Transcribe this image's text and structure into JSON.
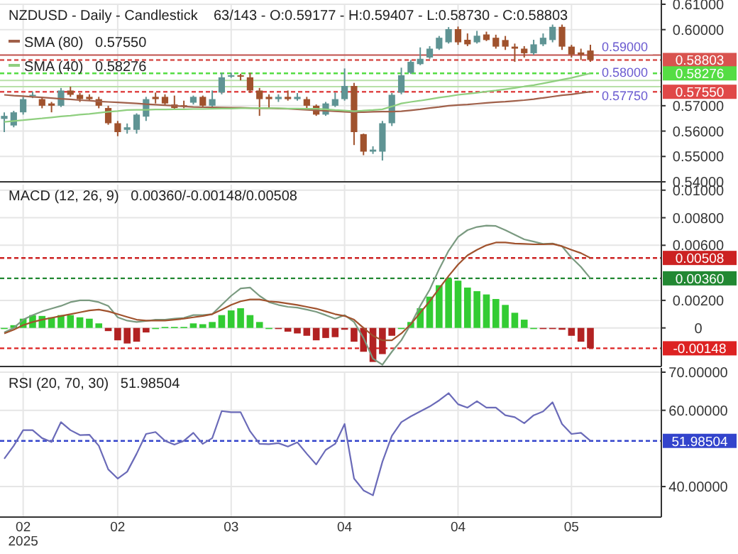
{
  "chart_data": [
    {
      "type": "candlestick",
      "title": "NZDUSD - Daily - Candlestick    63/143 - O:0.59177 - H:0.59407 - L:0.58730 - C:0.58803",
      "categories": [
        null,
        null,
        null,
        null,
        null,
        null,
        null,
        null,
        null,
        null,
        null,
        null,
        null,
        null,
        null,
        null,
        null,
        null,
        null,
        null,
        null,
        null,
        null,
        null,
        null,
        null,
        null,
        null,
        null,
        null,
        null,
        null,
        null,
        null,
        null,
        null,
        null,
        null,
        null,
        null,
        null,
        null,
        null,
        null,
        null,
        null,
        null,
        null,
        null,
        null,
        null,
        null,
        null,
        null,
        null,
        null,
        null,
        null,
        null,
        null,
        null,
        null,
        null
      ],
      "ohlc": [
        [
          0.5648,
          0.5674,
          0.5596,
          0.566
        ],
        [
          0.5622,
          0.568,
          0.5615,
          0.5674
        ],
        [
          0.5674,
          0.5735,
          0.5665,
          0.5726
        ],
        [
          0.574,
          0.5755,
          0.573,
          0.5743
        ],
        [
          0.5726,
          0.5735,
          0.569,
          0.57
        ],
        [
          0.5709,
          0.5715,
          0.5674,
          0.57
        ],
        [
          0.57,
          0.577,
          0.5695,
          0.576
        ],
        [
          0.576,
          0.5775,
          0.5735,
          0.5743
        ],
        [
          0.5743,
          0.575,
          0.5715,
          0.5726
        ],
        [
          0.5735,
          0.5745,
          0.572,
          0.5726
        ],
        [
          0.5726,
          0.5735,
          0.569,
          0.57
        ],
        [
          0.5691,
          0.57,
          0.5625,
          0.5631
        ],
        [
          0.5631,
          0.564,
          0.558,
          0.5596
        ],
        [
          0.5605,
          0.563,
          0.559,
          0.5615
        ],
        [
          0.5605,
          0.567,
          0.559,
          0.5665
        ],
        [
          0.5657,
          0.5735,
          0.564,
          0.5726
        ],
        [
          0.5735,
          0.5752,
          0.5709,
          0.5726
        ],
        [
          0.5735,
          0.5745,
          0.57,
          0.5709
        ],
        [
          0.5705,
          0.574,
          0.5688,
          0.5691
        ],
        [
          0.5702,
          0.572,
          0.569,
          0.5697
        ],
        [
          0.5712,
          0.574,
          0.5705,
          0.5735
        ],
        [
          0.5735,
          0.574,
          0.5695,
          0.57
        ],
        [
          0.57,
          0.576,
          0.5695,
          0.5726
        ],
        [
          0.5752,
          0.583,
          0.5745,
          0.5812
        ],
        [
          0.5815,
          0.583,
          0.581,
          0.582
        ],
        [
          0.582,
          0.5826,
          0.58,
          0.5818
        ],
        [
          0.5812,
          0.583,
          0.575,
          0.576
        ],
        [
          0.576,
          0.577,
          0.566,
          0.5726
        ],
        [
          0.5735,
          0.5745,
          0.569,
          0.5726
        ],
        [
          0.5726,
          0.5745,
          0.5715,
          0.5735
        ],
        [
          0.5735,
          0.576,
          0.572,
          0.5726
        ],
        [
          0.5726,
          0.575,
          0.572,
          0.5735
        ],
        [
          0.5726,
          0.5735,
          0.569,
          0.57
        ],
        [
          0.57,
          0.5705,
          0.566,
          0.5665
        ],
        [
          0.5665,
          0.5715,
          0.566,
          0.5709
        ],
        [
          0.57,
          0.5752,
          0.5695,
          0.5726
        ],
        [
          0.5726,
          0.5847,
          0.572,
          0.5778
        ],
        [
          0.5778,
          0.579,
          0.5545,
          0.5596
        ],
        [
          0.5588,
          0.559,
          0.5505,
          0.5519
        ],
        [
          0.5519,
          0.554,
          0.551,
          0.5527
        ],
        [
          0.5519,
          0.564,
          0.5484,
          0.5631
        ],
        [
          0.5631,
          0.575,
          0.562,
          0.5743
        ],
        [
          0.5752,
          0.585,
          0.5745,
          0.582
        ],
        [
          0.583,
          0.588,
          0.5825,
          0.5873
        ],
        [
          0.5864,
          0.593,
          0.586,
          0.5885
        ],
        [
          0.589,
          0.5935,
          0.5885,
          0.5925
        ],
        [
          0.5925,
          0.5975,
          0.592,
          0.5968
        ],
        [
          0.595,
          0.601,
          0.5945,
          0.6002
        ],
        [
          0.6002,
          0.6012,
          0.594,
          0.595
        ],
        [
          0.596,
          0.5985,
          0.5935,
          0.5942
        ],
        [
          0.595,
          0.5995,
          0.5945,
          0.5976
        ],
        [
          0.5981,
          0.5992,
          0.5955,
          0.5959
        ],
        [
          0.5968,
          0.598,
          0.5925,
          0.5933
        ],
        [
          0.5959,
          0.5975,
          0.592,
          0.5933
        ],
        [
          0.5933,
          0.5945,
          0.5873,
          0.5925
        ],
        [
          0.5925,
          0.5935,
          0.589,
          0.5907
        ],
        [
          0.5907,
          0.596,
          0.59,
          0.5942
        ],
        [
          0.5942,
          0.5985,
          0.5935,
          0.5968
        ],
        [
          0.5959,
          0.602,
          0.595,
          0.6011
        ],
        [
          0.6011,
          0.602,
          0.592,
          0.5933
        ],
        [
          0.5933,
          0.594,
          0.589,
          0.5902
        ],
        [
          0.591,
          0.5925,
          0.588,
          0.59
        ],
        [
          0.59177,
          0.59407,
          0.5873,
          0.58803
        ]
      ],
      "series": [
        {
          "type": "line",
          "name": "SMA (80)   0.57550",
          "color": "#a0604a",
          "values": [
            0.5743,
            0.574,
            0.5738,
            0.5735,
            0.5733,
            0.573,
            0.5727,
            0.5725,
            0.5722,
            0.572,
            0.5717,
            0.5715,
            0.5713,
            0.5711,
            0.5709,
            0.5706,
            0.5704,
            0.5702,
            0.57,
            0.5697,
            0.5695,
            0.5694,
            0.5694,
            0.5693,
            0.5692,
            0.5692,
            0.5691,
            0.569,
            0.569,
            0.5689,
            0.5688,
            0.5686,
            0.5684,
            0.5682,
            0.568,
            0.5678,
            0.5676,
            0.5674,
            0.5675,
            0.5676,
            0.5677,
            0.5677,
            0.5678,
            0.5682,
            0.5686,
            0.5691,
            0.5695,
            0.57,
            0.5703,
            0.5705,
            0.5708,
            0.5711,
            0.5714,
            0.5716,
            0.5719,
            0.5722,
            0.5726,
            0.5731,
            0.5736,
            0.5741,
            0.5745,
            0.575,
            0.5755
          ]
        },
        {
          "type": "line",
          "name": "SMA (40)   0.58276",
          "color": "#8fcf7f",
          "values": [
            0.5636,
            0.564,
            0.5643,
            0.5647,
            0.565,
            0.5654,
            0.5658,
            0.5661,
            0.5665,
            0.5668,
            0.5672,
            0.5676,
            0.5679,
            0.5683,
            0.5684,
            0.5684,
            0.5685,
            0.5685,
            0.5686,
            0.5686,
            0.5687,
            0.5687,
            0.5688,
            0.5689,
            0.5689,
            0.569,
            0.569,
            0.5691,
            0.569,
            0.569,
            0.5689,
            0.5689,
            0.5688,
            0.5688,
            0.5686,
            0.5683,
            0.5681,
            0.5678,
            0.5681,
            0.5683,
            0.5686,
            0.5697,
            0.5709,
            0.5715,
            0.572,
            0.5726,
            0.5732,
            0.5737,
            0.5743,
            0.5747,
            0.5751,
            0.5756,
            0.576,
            0.5765,
            0.577,
            0.5776,
            0.5781,
            0.5788,
            0.5795,
            0.5803,
            0.581,
            0.5819,
            0.58276
          ]
        }
      ],
      "ylim": [
        0.54,
        0.61
      ],
      "yticks": [
        {
          "value": 0.54,
          "label": "0.54000"
        },
        {
          "value": 0.55,
          "label": "0.55000"
        },
        {
          "value": 0.56,
          "label": "0.56000"
        },
        {
          "value": 0.57,
          "label": "0.57000"
        },
        {
          "value": 0.6,
          "label": "0.60000"
        },
        {
          "value": 0.61,
          "label": "0.61000"
        }
      ],
      "ref_lines": [
        {
          "axis": "y",
          "value": 0.59,
          "label": "0.59000",
          "color": "#c0504d",
          "line_style": "solid"
        },
        {
          "axis": "y",
          "value": 0.58,
          "label": "0.58000",
          "color": "#b8e0a8",
          "line_style": "solid"
        },
        {
          "axis": "y",
          "value": 0.5775,
          "label": "0.57750",
          "color": "#b8e0a8",
          "line_style": "solid"
        },
        {
          "axis": "y",
          "value": 0.58803,
          "label": "0.58803",
          "color": "#d9534f",
          "line_style": "dashed"
        },
        {
          "axis": "y",
          "value": 0.58276,
          "label": "0.58276",
          "color": "#55dd44",
          "line_style": "dashed"
        },
        {
          "axis": "y",
          "value": 0.5755,
          "label": "0.57550",
          "color": "#e04848",
          "line_style": "dashed"
        }
      ],
      "grid": true,
      "legend": "top left",
      "tick_labels": "y"
    },
    {
      "type": "bar",
      "title": "MACD (12, 26, 9)   0.00360/-0.00148/0.00508",
      "categories": [
        null,
        null,
        null,
        null,
        null,
        null,
        null,
        null,
        null,
        null,
        null,
        null,
        null,
        null,
        null,
        null,
        null,
        null,
        null,
        null,
        null,
        null,
        null,
        null,
        null,
        null,
        null,
        null,
        null,
        null,
        null,
        null,
        null,
        null,
        null,
        null,
        null,
        null,
        null,
        null,
        null,
        null,
        null,
        null,
        null,
        null,
        null,
        null,
        null,
        null,
        null,
        null,
        null,
        null,
        null,
        null,
        null,
        null,
        null,
        null,
        null,
        null,
        null
      ],
      "series": [
        {
          "type": "bar",
          "values": [
            0,
            0.0002,
            0.00067,
            0.00093,
            0.00087,
            0.00077,
            0.00093,
            0.00093,
            0.00077,
            0.00067,
            0.00033,
            -0.00023,
            -0.0009,
            -0.00113,
            -0.001,
            -0.00033,
            0,
            7e-05,
            7e-05,
            7e-05,
            0.00033,
            0.00027,
            0.00043,
            0.00093,
            0.00127,
            0.00143,
            0.00093,
            0.00043,
            0,
            -7e-05,
            -0.00027,
            -0.0004,
            -0.00057,
            -0.0009,
            -0.00073,
            -0.00067,
            -0.00013,
            -0.001,
            -0.00173,
            -0.00247,
            -0.0019,
            -0.00057,
            0,
            0.00043,
            0.00143,
            0.00227,
            0.0031,
            0.0036,
            0.00343,
            0.00293,
            0.00267,
            0.00243,
            0.0021,
            0.00167,
            0.0011,
            0.0006,
            0,
            -7e-05,
            -7e-05,
            -0.00013,
            -0.00057,
            -0.001,
            -0.00148
          ],
          "colors": [
            "#33cc33",
            "#33cc33",
            "#33cc33",
            "#33cc33",
            "#33cc33",
            "#33cc33",
            "#33cc33",
            "#33cc33",
            "#33cc33",
            "#33cc33",
            "#33cc33",
            "#b22222",
            "#b22222",
            "#b22222",
            "#b22222",
            "#b22222",
            "#33cc33",
            "#33cc33",
            "#33cc33",
            "#33cc33",
            "#33cc33",
            "#33cc33",
            "#33cc33",
            "#33cc33",
            "#33cc33",
            "#33cc33",
            "#33cc33",
            "#33cc33",
            "#33cc33",
            "#b22222",
            "#b22222",
            "#b22222",
            "#b22222",
            "#b22222",
            "#b22222",
            "#b22222",
            "#b22222",
            "#b22222",
            "#b22222",
            "#b22222",
            "#b22222",
            "#b22222",
            "#33cc33",
            "#33cc33",
            "#33cc33",
            "#33cc33",
            "#33cc33",
            "#33cc33",
            "#33cc33",
            "#33cc33",
            "#33cc33",
            "#33cc33",
            "#33cc33",
            "#33cc33",
            "#33cc33",
            "#33cc33",
            "#33cc33",
            "#b22222",
            "#b22222",
            "#b22222",
            "#b22222",
            "#b22222",
            "#b22222"
          ]
        },
        {
          "type": "line",
          "color": "#7a9a80",
          "values": [
            -0.00033,
            0,
            0.0006,
            0.00093,
            0.0012,
            0.0014,
            0.0016,
            0.00187,
            0.002,
            0.002,
            0.00187,
            0.0016,
            0.00077,
            0.00053,
            0.00043,
            0.0005,
            0.0006,
            0.0006,
            0.00067,
            0.00073,
            0.00093,
            0.00093,
            0.001,
            0.00167,
            0.00233,
            0.00287,
            0.00293,
            0.00233,
            0.00187,
            0.00167,
            0.00153,
            0.00147,
            0.00133,
            0.00117,
            0.00093,
            0.00067,
            0.00093,
            0.00043,
            -0.00073,
            -0.00223,
            -0.00267,
            -0.00173,
            -0.0009,
            0.00027,
            0.0016,
            0.00277,
            0.00427,
            0.0056,
            0.0066,
            0.0071,
            0.00733,
            0.00743,
            0.0074,
            0.0071,
            0.00677,
            0.00643,
            0.00627,
            0.0061,
            0.00613,
            0.00593,
            0.0051,
            0.00443,
            0.0036
          ]
        },
        {
          "type": "line",
          "color": "#a0522d",
          "values": [
            -0.0004,
            -0.00013,
            0.0002,
            0.00043,
            0.0006,
            0.00073,
            0.00087,
            0.001,
            0.00113,
            0.00127,
            0.00133,
            0.0012,
            0.001,
            0.0008,
            0.0006,
            0.00053,
            0.00053,
            0.00053,
            0.0006,
            0.00067,
            0.00077,
            0.00087,
            0.001,
            0.00133,
            0.00167,
            0.00193,
            0.00207,
            0.00207,
            0.00193,
            0.00187,
            0.00177,
            0.00167,
            0.00153,
            0.0014,
            0.0012,
            0.001,
            0.00087,
            0.0006,
            0,
            -0.00057,
            -0.0009,
            -0.0009,
            -0.0004,
            0.00027,
            0.0011,
            0.00193,
            0.00287,
            0.00377,
            0.0046,
            0.00527,
            0.00567,
            0.006,
            0.0062,
            0.0062,
            0.00613,
            0.0061,
            0.00607,
            0.00607,
            0.0061,
            0.00593,
            0.00567,
            0.00543,
            0.00508
          ]
        }
      ],
      "ylim": [
        -0.0028,
        0.0104
      ],
      "yticks": [
        {
          "value": 0,
          "label": "0"
        },
        {
          "value": 0.002,
          "label": "0.00200"
        },
        {
          "value": 0.006,
          "label": "0.00600"
        },
        {
          "value": 0.008,
          "label": "0.00800"
        },
        {
          "value": 0.01,
          "label": "0.01000"
        }
      ],
      "ref_lines": [
        {
          "axis": "y",
          "value": 0.00508,
          "label": "0.00508",
          "color": "#cc2222",
          "line_style": "dashed"
        },
        {
          "axis": "y",
          "value": 0.0036,
          "label": "0.00360",
          "color": "#228833",
          "line_style": "dashed"
        },
        {
          "axis": "y",
          "value": -0.00148,
          "label": "-0.00148",
          "color": "#dd2222",
          "line_style": "dashed"
        }
      ],
      "grid": true,
      "tick_labels": "y"
    },
    {
      "type": "line",
      "title": "RSI (20, 70, 30)   51.98504",
      "categories": [
        null,
        null,
        "02",
        null,
        null,
        null,
        null,
        null,
        null,
        null,
        null,
        null,
        "02",
        null,
        null,
        null,
        null,
        null,
        null,
        null,
        null,
        null,
        null,
        null,
        "03",
        null,
        null,
        null,
        null,
        null,
        null,
        null,
        null,
        null,
        null,
        null,
        "04",
        null,
        null,
        null,
        null,
        null,
        null,
        null,
        null,
        null,
        null,
        null,
        "04",
        null,
        null,
        null,
        null,
        null,
        null,
        null,
        null,
        null,
        null,
        null,
        "05",
        null,
        null
      ],
      "series": [
        {
          "color": "#6a6ab8",
          "values": [
            47.3,
            50.7,
            54.8,
            54.8,
            52.7,
            51.7,
            56.9,
            54.8,
            53.5,
            53.6,
            50.7,
            44.5,
            42.1,
            43.9,
            48.6,
            53.8,
            54.3,
            52.0,
            51.0,
            52.0,
            54.1,
            51.2,
            52.7,
            59.8,
            59.5,
            59.5,
            54.5,
            51.2,
            51.1,
            51.4,
            50.5,
            51.6,
            48.6,
            45.8,
            49.6,
            51.2,
            56.4,
            42.1,
            39.0,
            37.7,
            46.5,
            53.3,
            56.9,
            58.4,
            59.7,
            61.0,
            62.6,
            64.5,
            61.6,
            60.7,
            62.4,
            60.7,
            60.7,
            58.7,
            58.2,
            56.6,
            58.7,
            59.7,
            62.1,
            56.4,
            53.8,
            54.1,
            51.98504
          ]
        }
      ],
      "ylim": [
        32,
        70
      ],
      "yticks": [
        {
          "value": 40,
          "label": "40.00000"
        },
        {
          "value": 60,
          "label": "60.00000"
        },
        {
          "value": 70,
          "label": "70.00000"
        }
      ],
      "ref_lines": [
        {
          "axis": "y",
          "value": 51.98504,
          "label": "51.98504",
          "color": "#3344cc",
          "line_style": "dashed"
        }
      ],
      "annotations": [
        "2025"
      ],
      "grid": true
    }
  ]
}
